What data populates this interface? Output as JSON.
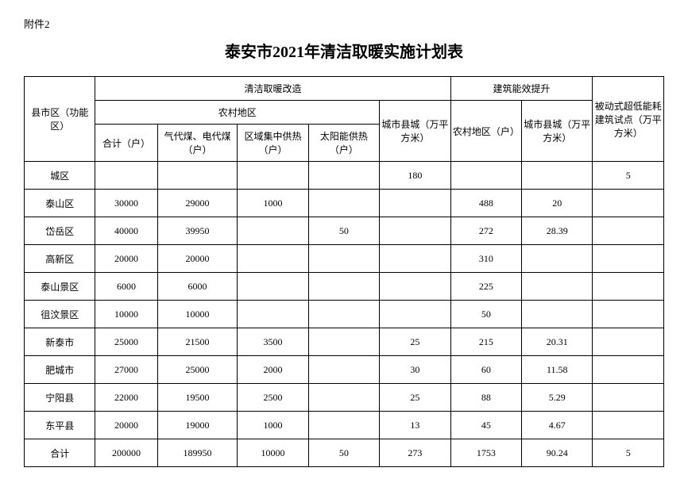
{
  "attachment_label": "附件2",
  "title": "泰安市2021年清洁取暖实施计划表",
  "headers": {
    "region": "县市区（功能区）",
    "clean_heating": "清洁取暖改造",
    "rural_area": "农村地区",
    "total": "合计（户）",
    "gas_elec": "气代煤、电代煤（户）",
    "district_heat": "区域集中供热（户）",
    "solar_heat": "太阳能供热（户）",
    "urban_county": "城市县城（万平方米）",
    "building_eff": "建筑能效提升",
    "rural_hh": "农村地区（户）",
    "urban_eff": "城市县城（万平方米）",
    "passive": "被动式超低能耗建筑试点（万平方米）"
  },
  "rows": [
    {
      "region": "城区",
      "total": "",
      "gas_elec": "",
      "district_heat": "",
      "solar_heat": "",
      "urban_county": "180",
      "rural_hh": "",
      "urban_eff": "",
      "passive": "5"
    },
    {
      "region": "泰山区",
      "total": "30000",
      "gas_elec": "29000",
      "district_heat": "1000",
      "solar_heat": "",
      "urban_county": "",
      "rural_hh": "488",
      "urban_eff": "20",
      "passive": ""
    },
    {
      "region": "岱岳区",
      "total": "40000",
      "gas_elec": "39950",
      "district_heat": "",
      "solar_heat": "50",
      "urban_county": "",
      "rural_hh": "272",
      "urban_eff": "28.39",
      "passive": ""
    },
    {
      "region": "高新区",
      "total": "20000",
      "gas_elec": "20000",
      "district_heat": "",
      "solar_heat": "",
      "urban_county": "",
      "rural_hh": "310",
      "urban_eff": "",
      "passive": ""
    },
    {
      "region": "泰山景区",
      "total": "6000",
      "gas_elec": "6000",
      "district_heat": "",
      "solar_heat": "",
      "urban_county": "",
      "rural_hh": "225",
      "urban_eff": "",
      "passive": ""
    },
    {
      "region": "徂汶景区",
      "total": "10000",
      "gas_elec": "10000",
      "district_heat": "",
      "solar_heat": "",
      "urban_county": "",
      "rural_hh": "50",
      "urban_eff": "",
      "passive": ""
    },
    {
      "region": "新泰市",
      "total": "25000",
      "gas_elec": "21500",
      "district_heat": "3500",
      "solar_heat": "",
      "urban_county": "25",
      "rural_hh": "215",
      "urban_eff": "20.31",
      "passive": ""
    },
    {
      "region": "肥城市",
      "total": "27000",
      "gas_elec": "25000",
      "district_heat": "2000",
      "solar_heat": "",
      "urban_county": "30",
      "rural_hh": "60",
      "urban_eff": "11.58",
      "passive": ""
    },
    {
      "region": "宁阳县",
      "total": "22000",
      "gas_elec": "19500",
      "district_heat": "2500",
      "solar_heat": "",
      "urban_county": "25",
      "rural_hh": "88",
      "urban_eff": "5.29",
      "passive": ""
    },
    {
      "region": "东平县",
      "total": "20000",
      "gas_elec": "19000",
      "district_heat": "1000",
      "solar_heat": "",
      "urban_county": "13",
      "rural_hh": "45",
      "urban_eff": "4.67",
      "passive": ""
    },
    {
      "region": "合计",
      "total": "200000",
      "gas_elec": "189950",
      "district_heat": "10000",
      "solar_heat": "50",
      "urban_county": "273",
      "rural_hh": "1753",
      "urban_eff": "90.24",
      "passive": "5"
    }
  ],
  "style": {
    "background_color": "#ffffff",
    "border_color": "#000000",
    "title_fontsize": 20,
    "body_fontsize": 12,
    "font_family": "SimSun"
  }
}
